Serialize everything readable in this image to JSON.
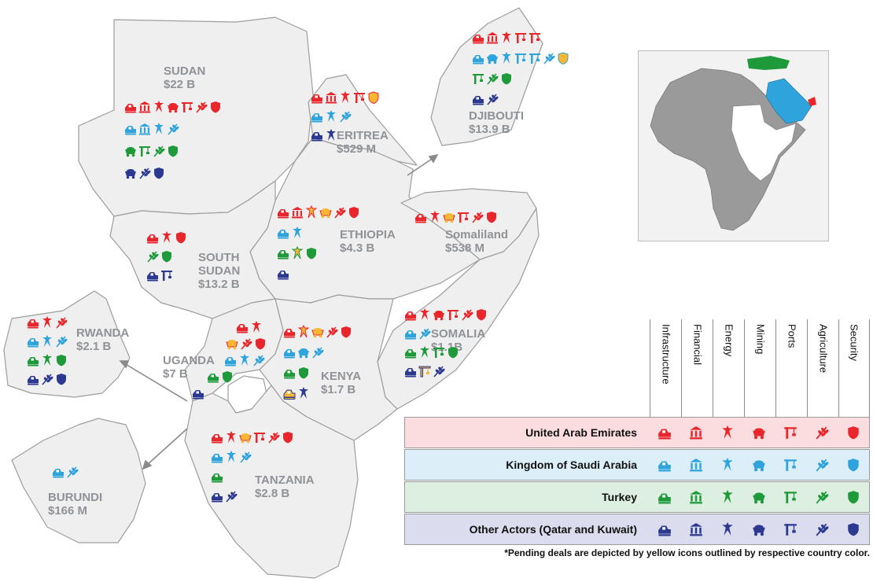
{
  "colors": {
    "uae": "#e8262b",
    "ksa": "#2ea3dc",
    "turkey": "#1e9a3a",
    "other": "#2b3990",
    "pending": "#f7b733",
    "land": "#efefef",
    "border": "#9d9d9d"
  },
  "countries": [
    {
      "key": "sudan",
      "name": "SUDAN",
      "value": "$22 B"
    },
    {
      "key": "eritrea",
      "name": "ERITREA",
      "value": "$529 M"
    },
    {
      "key": "djibouti",
      "name": "DJIBOUTI",
      "value": "$13.9 B"
    },
    {
      "key": "ethiopia",
      "name": "ETHIOPIA",
      "value": "$4.3 B"
    },
    {
      "key": "somaliland",
      "name": "Somaliland",
      "value": "$538 M"
    },
    {
      "key": "south_sudan",
      "name": "SOUTH",
      "name2": "SUDAN",
      "value": "$13.2 B"
    },
    {
      "key": "somalia",
      "name": "SOMALIA",
      "value": "$1.1B"
    },
    {
      "key": "rwanda",
      "name": "RWANDA",
      "value": "$2.1 B"
    },
    {
      "key": "uganda",
      "name": "UGANDA",
      "value": "$7 B"
    },
    {
      "key": "kenya",
      "name": "KENYA",
      "value": "$1.7 B"
    },
    {
      "key": "tanzania",
      "name": "TANZANIA",
      "value": "$2.8 B"
    },
    {
      "key": "burundi",
      "name": "BURUNDI",
      "value": "$166 M"
    }
  ],
  "icon_types": [
    "infrastructure-icon",
    "financial-icon",
    "energy-icon",
    "mining-icon",
    "ports-icon",
    "agriculture-icon",
    "security-icon"
  ],
  "deals": {
    "sudan": [
      {
        "actor": "uae",
        "icons": [
          "infrastructure",
          "financial",
          "energy",
          "mining",
          "ports",
          "agriculture",
          "security"
        ]
      },
      {
        "actor": "ksa",
        "icons": [
          "infrastructure",
          "financial",
          "energy",
          "agriculture"
        ]
      },
      {
        "actor": "turkey",
        "icons": [
          "mining",
          "ports",
          "agriculture",
          "security"
        ]
      },
      {
        "actor": "other",
        "icons": [
          "mining",
          "agriculture",
          "security"
        ]
      }
    ],
    "eritrea": [
      {
        "actor": "uae",
        "icons": [
          "infrastructure",
          "financial",
          "energy",
          "ports",
          "security"
        ],
        "pending": [
          4
        ]
      },
      {
        "actor": "ksa",
        "icons": [
          "infrastructure",
          "energy",
          "agriculture"
        ]
      },
      {
        "actor": "other",
        "icons": [
          "infrastructure",
          "energy"
        ]
      }
    ],
    "djibouti": [
      {
        "actor": "uae",
        "icons": [
          "infrastructure",
          "financial",
          "energy",
          "ports",
          "ports"
        ]
      },
      {
        "actor": "ksa",
        "icons": [
          "infrastructure",
          "mining",
          "energy",
          "ports",
          "ports",
          "agriculture",
          "security"
        ],
        "pending": [
          6
        ]
      },
      {
        "actor": "turkey",
        "icons": [
          "ports",
          "agriculture",
          "security"
        ]
      },
      {
        "actor": "other",
        "icons": [
          "infrastructure",
          "agriculture"
        ]
      }
    ],
    "ethiopia": [
      {
        "actor": "uae",
        "icons": [
          "infrastructure",
          "financial",
          "energy",
          "mining",
          "agriculture",
          "security"
        ],
        "pending": [
          2,
          3
        ]
      },
      {
        "actor": "ksa",
        "icons": [
          "infrastructure",
          "energy"
        ]
      },
      {
        "actor": "turkey",
        "icons": [
          "infrastructure",
          "energy",
          "security"
        ],
        "pending": [
          1
        ]
      },
      {
        "actor": "other",
        "icons": [
          "infrastructure"
        ]
      }
    ],
    "somaliland": [
      {
        "actor": "uae",
        "icons": [
          "infrastructure",
          "energy",
          "mining",
          "ports",
          "agriculture",
          "security"
        ],
        "pending": [
          2
        ]
      }
    ],
    "south_sudan": [
      {
        "actor": "uae",
        "icons": [
          "infrastructure",
          "energy",
          "security"
        ]
      },
      {
        "actor": "turkey",
        "icons": [
          "agriculture",
          "security"
        ]
      },
      {
        "actor": "other",
        "icons": [
          "infrastructure",
          "ports"
        ]
      }
    ],
    "somalia": [
      {
        "actor": "uae",
        "icons": [
          "infrastructure",
          "energy",
          "mining",
          "ports",
          "agriculture",
          "security"
        ]
      },
      {
        "actor": "ksa",
        "icons": [
          "infrastructure",
          "agriculture"
        ]
      },
      {
        "actor": "turkey",
        "icons": [
          "infrastructure",
          "energy",
          "ports",
          "security"
        ]
      },
      {
        "actor": "other",
        "icons": [
          "infrastructure",
          "ports",
          "agriculture"
        ],
        "pending": [
          1
        ]
      }
    ],
    "rwanda": [
      {
        "actor": "uae",
        "icons": [
          "infrastructure",
          "energy",
          "agriculture"
        ]
      },
      {
        "actor": "ksa",
        "icons": [
          "infrastructure",
          "energy",
          "agriculture"
        ]
      },
      {
        "actor": "turkey",
        "icons": [
          "infrastructure",
          "energy",
          "security"
        ]
      },
      {
        "actor": "other",
        "icons": [
          "infrastructure",
          "agriculture",
          "security"
        ]
      }
    ],
    "uganda_top": [
      {
        "actor": "uae",
        "icons": [
          "infrastructure",
          "energy"
        ]
      },
      {
        "actor": "uae",
        "icons": [
          "mining",
          "agriculture",
          "security"
        ],
        "pending": [
          0
        ]
      },
      {
        "actor": "ksa",
        "icons": [
          "infrastructure",
          "energy",
          "agriculture"
        ]
      },
      {
        "actor": "turkey",
        "icons": [
          "infrastructure",
          "security"
        ]
      },
      {
        "actor": "other",
        "icons": [
          "infrastructure"
        ]
      }
    ],
    "kenya": [
      {
        "actor": "uae",
        "icons": [
          "infrastructure",
          "energy",
          "mining",
          "agriculture",
          "security"
        ],
        "pending": [
          1,
          2
        ]
      },
      {
        "actor": "ksa",
        "icons": [
          "infrastructure",
          "mining",
          "agriculture"
        ]
      },
      {
        "actor": "turkey",
        "icons": [
          "infrastructure",
          "security"
        ]
      },
      {
        "actor": "other",
        "icons": [
          "infrastructure",
          "energy"
        ],
        "pending": [
          0
        ]
      }
    ],
    "tanzania": [
      {
        "actor": "uae",
        "icons": [
          "infrastructure",
          "energy",
          "mining",
          "ports",
          "agriculture",
          "security"
        ],
        "pending": [
          2
        ]
      },
      {
        "actor": "ksa",
        "icons": [
          "infrastructure",
          "energy",
          "agriculture"
        ]
      },
      {
        "actor": "turkey",
        "icons": [
          "infrastructure"
        ]
      },
      {
        "actor": "other",
        "icons": [
          "infrastructure",
          "agriculture"
        ]
      }
    ],
    "burundi": [
      {
        "actor": "ksa",
        "icons": [
          "infrastructure",
          "agriculture"
        ]
      }
    ]
  },
  "legend": {
    "columns": [
      "Infrastructure",
      "Financial",
      "Energy",
      "Mining",
      "Ports",
      "Agriculture",
      "Security"
    ],
    "rows": [
      {
        "actor": "uae",
        "label": "United Arab Emirates",
        "bg": "#fbdde0"
      },
      {
        "actor": "ksa",
        "label": "Kingdom of Saudi Arabia",
        "bg": "#dceef8"
      },
      {
        "actor": "turkey",
        "label": "Turkey",
        "bg": "#dcefe0"
      },
      {
        "actor": "other",
        "label": "Other Actors (Qatar and Kuwait)",
        "bg": "#dcdcef"
      }
    ],
    "footnote": "*Pending deals are depicted by yellow icons outlined by respective country color."
  },
  "inset": {
    "highlight_turkey": "#1e9a3a",
    "highlight_saudi": "#2ea3dc",
    "highlight_uae": "#e8262b",
    "highlight_region": "#ffffff"
  }
}
